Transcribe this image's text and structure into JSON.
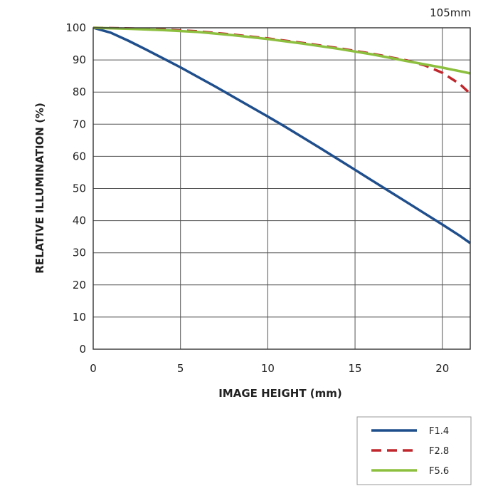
{
  "chart_data": {
    "type": "line",
    "title": "",
    "annotation": "105mm",
    "xlabel": "IMAGE HEIGHT (mm)",
    "ylabel": "RELATIVE ILLUMINATION (%)",
    "xlim": [
      0,
      21.6
    ],
    "ylim": [
      0,
      100
    ],
    "xticks": [
      0,
      5,
      10,
      15,
      20
    ],
    "yticks": [
      0,
      10,
      20,
      30,
      40,
      50,
      60,
      70,
      80,
      90,
      100
    ],
    "grid": true,
    "legend_position": "bottom-right",
    "series": [
      {
        "name": "F1.4",
        "color": "#1f4e8c",
        "style": "solid",
        "x": [
          0,
          1,
          2,
          3,
          4,
          5,
          6,
          7,
          8,
          9,
          10,
          11,
          12,
          13,
          14,
          15,
          16,
          17,
          18,
          19,
          20,
          21,
          21.6
        ],
        "y": [
          100,
          98.5,
          96,
          93.3,
          90.5,
          87.7,
          84.7,
          81.7,
          78.6,
          75.5,
          72.4,
          69.2,
          65.9,
          62.6,
          59.2,
          55.8,
          52.4,
          49,
          45.6,
          42.2,
          38.8,
          35.3,
          33
        ]
      },
      {
        "name": "F2.8",
        "color": "#c0272d",
        "style": "dashed",
        "x": [
          0,
          2,
          4,
          6,
          8,
          10,
          12,
          14,
          16,
          18,
          19,
          20,
          21,
          21.6
        ],
        "y": [
          100,
          99.8,
          99.5,
          98.9,
          97.9,
          96.7,
          95.3,
          93.7,
          91.9,
          89.8,
          88.3,
          86,
          82.5,
          79.5
        ]
      },
      {
        "name": "F5.6",
        "color": "#8dbf3f",
        "style": "solid",
        "x": [
          0,
          2,
          4,
          6,
          8,
          10,
          12,
          14,
          16,
          18,
          19,
          20,
          21,
          21.6
        ],
        "y": [
          100,
          99.7,
          99.3,
          98.7,
          97.7,
          96.5,
          95.1,
          93.5,
          91.7,
          89.6,
          88.6,
          87.6,
          86.5,
          85.8
        ]
      }
    ]
  }
}
